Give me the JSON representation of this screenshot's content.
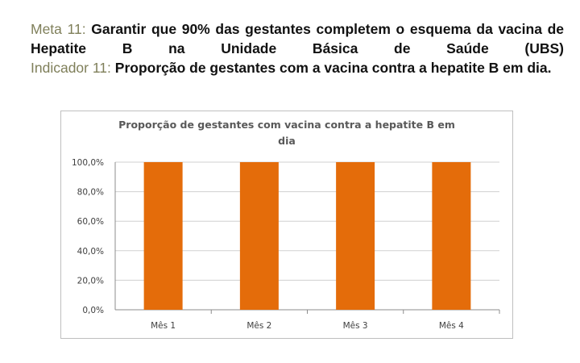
{
  "header": {
    "goal_label": "Meta 11:",
    "goal_text": "Garantir que 90% das gestantes completem o esquema da vacina de Hepatite B na Unidade Básica de Saúde (UBS)",
    "indicator_label": "Indicador 11:",
    "indicator_text": "Proporção de gestantes com a vacina contra a hepatite B em dia."
  },
  "chart_data": {
    "type": "bar",
    "title": "Proporção de gestantes com vacina contra a hepatite B em dia",
    "title_lines": [
      "Proporção de gestantes com vacina contra a hepatite B em",
      "dia"
    ],
    "categories": [
      "Mês 1",
      "Mês 2",
      "Mês 3",
      "Mês 4"
    ],
    "values": [
      100,
      100,
      100,
      100
    ],
    "ylim": [
      0,
      100
    ],
    "yticks": [
      0,
      20,
      40,
      60,
      80,
      100
    ],
    "ytick_labels": [
      "0,0%",
      "20,0%",
      "40,0%",
      "60,0%",
      "80,0%",
      "100,0%"
    ],
    "grid": true,
    "legend": "none",
    "bar_color": "#e46c0a",
    "grid_color": "#d0d0d0"
  }
}
